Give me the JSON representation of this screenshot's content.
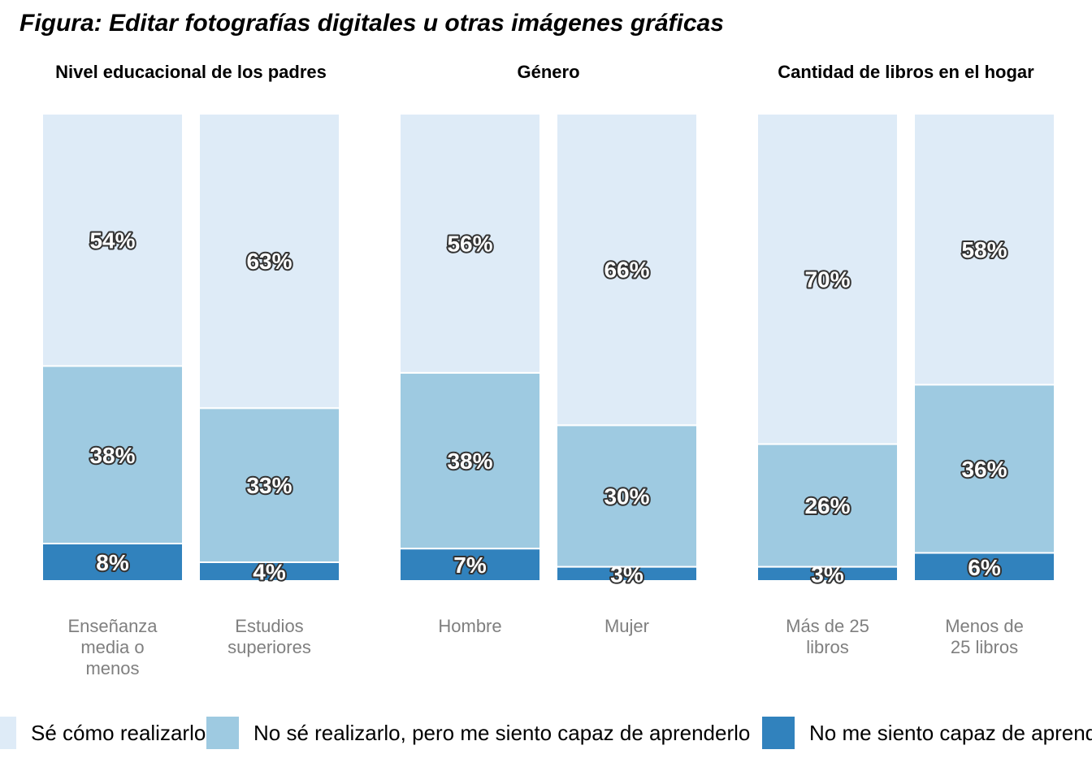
{
  "title": "Figura: Editar fotografías digitales u otras imágenes gráficas",
  "colors": {
    "se_como": "#deebf7",
    "capaz": "#9ecae1",
    "no_capaz": "#3182bd",
    "label_text": "#ffffff",
    "label_outline": "#333333",
    "tick_text": "#7f7f7f"
  },
  "legend": {
    "items": [
      {
        "key": "se_como",
        "label": "Sé cómo realizarlo"
      },
      {
        "key": "capaz",
        "label": "No sé realizarlo, pero me siento capaz de aprenderlo"
      },
      {
        "key": "no_capaz",
        "label": "No me siento capaz de aprenderlo"
      }
    ]
  },
  "chart_data": {
    "type": "bar",
    "stacked": true,
    "percent": true,
    "ylim": [
      0,
      100
    ],
    "legend_position": "bottom",
    "grid": false,
    "panels": [
      {
        "title": "Nivel educacional de los padres",
        "categories": [
          [
            "Enseñanza",
            "media o",
            "menos"
          ],
          [
            "Estudios",
            "superiores"
          ]
        ],
        "series": [
          {
            "name": "No me siento capaz de aprenderlo",
            "key": "no_capaz",
            "values": [
              8,
              4
            ],
            "labels": [
              "8%",
              "4%"
            ]
          },
          {
            "name": "No sé realizarlo, pero me siento capaz de aprenderlo",
            "key": "capaz",
            "values": [
              38,
              33
            ],
            "labels": [
              "38%",
              "33%"
            ]
          },
          {
            "name": "Sé cómo realizarlo",
            "key": "se_como",
            "values": [
              54,
              63
            ],
            "labels": [
              "54%",
              "63%"
            ]
          }
        ]
      },
      {
        "title": "Género",
        "categories": [
          [
            "Hombre"
          ],
          [
            "Mujer"
          ]
        ],
        "series": [
          {
            "name": "No me siento capaz de aprenderlo",
            "key": "no_capaz",
            "values": [
              7,
              3
            ],
            "labels": [
              "7%",
              "3%"
            ]
          },
          {
            "name": "No sé realizarlo, pero me siento capaz de aprenderlo",
            "key": "capaz",
            "values": [
              38,
              30
            ],
            "labels": [
              "38%",
              "30%"
            ]
          },
          {
            "name": "Sé cómo realizarlo",
            "key": "se_como",
            "values": [
              56,
              66
            ],
            "labels": [
              "56%",
              "66%"
            ]
          }
        ]
      },
      {
        "title": "Cantidad de libros en el hogar",
        "categories": [
          [
            "Más de 25",
            "libros"
          ],
          [
            "Menos de",
            "25 libros"
          ]
        ],
        "series": [
          {
            "name": "No me siento capaz de aprenderlo",
            "key": "no_capaz",
            "values": [
              3,
              6
            ],
            "labels": [
              "3%",
              "6%"
            ]
          },
          {
            "name": "No sé realizarlo, pero me siento capaz de aprenderlo",
            "key": "capaz",
            "values": [
              26,
              36
            ],
            "labels": [
              "26%",
              "36%"
            ]
          },
          {
            "name": "Sé cómo realizarlo",
            "key": "se_como",
            "values": [
              70,
              58
            ],
            "labels": [
              "70%",
              "58%"
            ]
          }
        ]
      }
    ]
  }
}
